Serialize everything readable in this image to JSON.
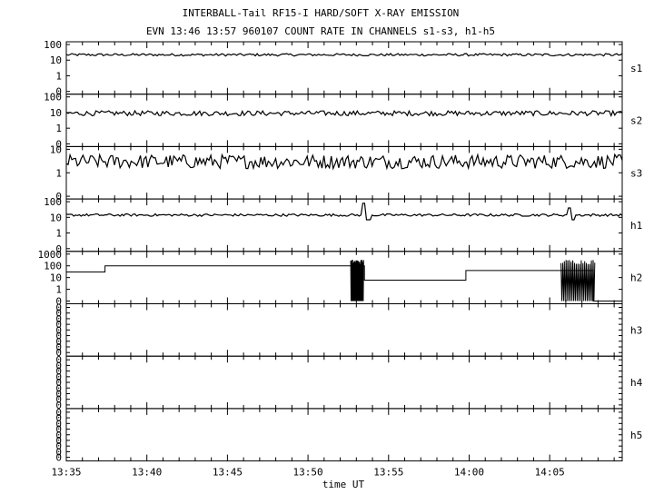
{
  "chart_data": {
    "type": "line",
    "title": "INTERBALL-Tail RF15-I HARD/SOFT X-RAY EMISSION",
    "subtitle": "EVN 13:46 13:57 960107  COUNT RATE IN CHANNELS s1-s3, h1-h5",
    "xlabel": "time UT",
    "x_ticks": [
      "13:35",
      "13:40",
      "13:45",
      "13:50",
      "13:55",
      "14:00",
      "14:05"
    ],
    "x_range_minutes": [
      0,
      34.5
    ],
    "panels": [
      {
        "name": "s1",
        "yscale": "log",
        "y_ticks": [
          "100",
          "10",
          "1",
          "0"
        ],
        "baseline": 22,
        "noise": 0.08,
        "spikes": []
      },
      {
        "name": "s2",
        "yscale": "log",
        "y_ticks": [
          "100",
          "10",
          "1",
          "0"
        ],
        "baseline": 9,
        "noise": 0.16,
        "spikes": []
      },
      {
        "name": "s3",
        "yscale": "log",
        "y_ticks": [
          "10",
          "1",
          "0"
        ],
        "baseline": 3,
        "noise": 0.3,
        "spikes": []
      },
      {
        "name": "h1",
        "yscale": "log",
        "y_ticks": [
          "100",
          "10",
          "1",
          "0"
        ],
        "baseline": 14,
        "noise": 0.08,
        "spikes": [
          {
            "x": 18.5,
            "y": 80
          },
          {
            "x": 31.2,
            "y": 40
          }
        ]
      },
      {
        "name": "h2",
        "yscale": "log",
        "y_ticks": [
          "1000",
          "100",
          "10",
          "1",
          "0"
        ],
        "step_x": [
          0,
          2.4,
          2.4,
          17.6,
          18.5,
          18.5,
          24.8,
          24.8,
          31.1,
          32.7,
          32.7,
          34.5
        ],
        "step_y": [
          30,
          30,
          100,
          100,
          100,
          6,
          6,
          40,
          40,
          40,
          0,
          0
        ],
        "bursts": [
          [
            17.65,
            18.45
          ],
          [
            30.7,
            32.8
          ]
        ]
      },
      {
        "name": "h3",
        "yscale": "linear",
        "y_ticks": [
          "0",
          "0",
          "0",
          "0",
          "0",
          "0",
          "0",
          "0",
          "0"
        ]
      },
      {
        "name": "h4",
        "yscale": "linear",
        "y_ticks": [
          "0",
          "0",
          "0",
          "0",
          "0",
          "0",
          "0",
          "0",
          "0"
        ]
      },
      {
        "name": "h5",
        "yscale": "linear",
        "y_ticks": [
          "0",
          "0",
          "0",
          "0",
          "0",
          "0",
          "0",
          "0",
          "0"
        ]
      }
    ]
  }
}
